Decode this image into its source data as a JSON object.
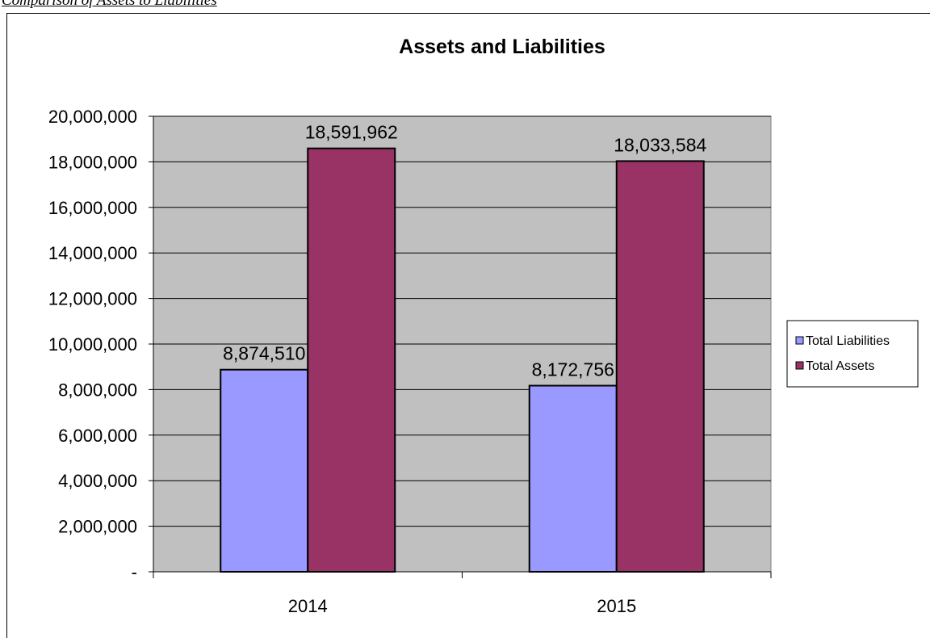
{
  "caption": "Comparison of Assets to Liabilities",
  "chart_data": {
    "type": "bar",
    "title": "Assets and Liabilities",
    "xlabel": "",
    "ylabel": "",
    "categories": [
      "2014",
      "2015"
    ],
    "series": [
      {
        "name": "Total Liabilities",
        "color": "#9999ff",
        "values": [
          8874510,
          8172756
        ],
        "value_labels": [
          "8,874,510",
          "8,172,756"
        ]
      },
      {
        "name": "Total Assets",
        "color": "#993366",
        "values": [
          18591962,
          18033584
        ],
        "value_labels": [
          "18,591,962",
          "18,033,584"
        ]
      }
    ],
    "ylim": [
      0,
      20000000
    ],
    "y_ticks": [
      0,
      2000000,
      4000000,
      6000000,
      8000000,
      10000000,
      12000000,
      14000000,
      16000000,
      18000000,
      20000000
    ],
    "y_tick_labels": [
      "-",
      "2,000,000",
      "4,000,000",
      "6,000,000",
      "8,000,000",
      "10,000,000",
      "12,000,000",
      "14,000,000",
      "16,000,000",
      "18,000,000",
      "20,000,000"
    ],
    "grid": true,
    "plot_background": "#c0c0c0",
    "legend_position": "right"
  }
}
